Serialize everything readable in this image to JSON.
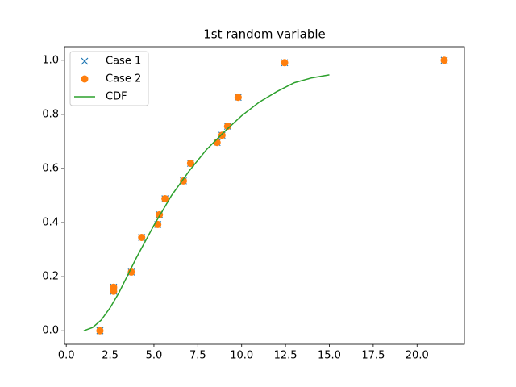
{
  "chart_data": {
    "type": "scatter",
    "title": "1st random variable",
    "xlim": [
      -0.1,
      22.7
    ],
    "ylim": [
      -0.05,
      1.05
    ],
    "xticks": [
      {
        "value": 0,
        "label": "0.0"
      },
      2.5,
      {
        "value": 5,
        "label": "5.0"
      },
      7.5,
      {
        "value": 10,
        "label": "10.0"
      },
      12.5,
      {
        "value": 15,
        "label": "15.0"
      },
      17.5,
      {
        "value": 20,
        "label": "20.0"
      }
    ],
    "yticks": [
      {
        "value": 0,
        "label": "0.0"
      },
      0.2,
      0.4,
      0.6,
      0.8,
      {
        "value": 1,
        "label": "1.0"
      }
    ],
    "grid": false,
    "legend": "upper-left",
    "series": [
      {
        "name": "Case 1",
        "color": "#1f77b4",
        "marker": "x",
        "x": [
          1.92,
          2.7,
          2.7,
          3.71,
          4.3,
          5.22,
          5.31,
          5.63,
          6.68,
          7.09,
          8.6,
          8.88,
          9.2,
          9.8,
          12.45,
          21.55
        ],
        "values": [
          0.0,
          0.146,
          0.161,
          0.217,
          0.345,
          0.393,
          0.429,
          0.488,
          0.554,
          0.619,
          0.696,
          0.723,
          0.756,
          0.863,
          0.991,
          1.0
        ]
      },
      {
        "name": "Case 2",
        "color": "#ff7f0e",
        "marker": "o",
        "x": [
          1.92,
          2.7,
          2.7,
          3.71,
          4.3,
          5.22,
          5.31,
          5.63,
          6.68,
          7.09,
          8.6,
          8.88,
          9.2,
          9.8,
          12.45,
          21.55
        ],
        "values": [
          0.0,
          0.146,
          0.161,
          0.217,
          0.345,
          0.393,
          0.429,
          0.488,
          0.554,
          0.619,
          0.696,
          0.723,
          0.756,
          0.863,
          0.991,
          1.0
        ]
      },
      {
        "name": "CDF",
        "color": "#2ca02c",
        "marker": "line",
        "x": [
          1,
          1.5,
          2,
          2.5,
          3,
          3.5,
          4,
          5,
          6,
          7,
          8,
          9,
          10,
          11,
          12,
          13,
          14,
          15
        ],
        "values": [
          0.0,
          0.012,
          0.04,
          0.085,
          0.14,
          0.205,
          0.27,
          0.39,
          0.5,
          0.59,
          0.67,
          0.735,
          0.795,
          0.845,
          0.884,
          0.917,
          0.935,
          0.946
        ]
      }
    ]
  }
}
